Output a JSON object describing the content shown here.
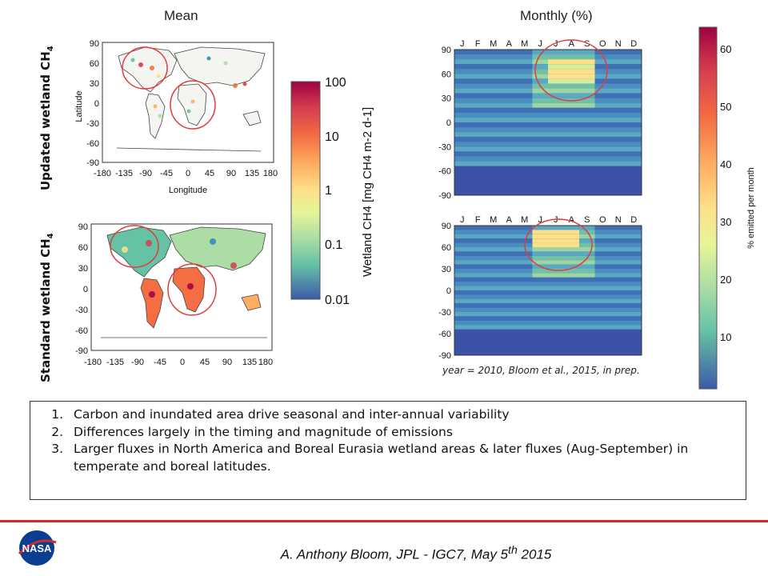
{
  "headers": {
    "mean": "Mean",
    "monthly": "Monthly (%)"
  },
  "row_labels": {
    "updated": {
      "text": "Updated wetland CH",
      "sub": "4"
    },
    "standard": {
      "text": "Standard wetland CH",
      "sub": "4"
    }
  },
  "map_axes": {
    "ylabel": "Latitude",
    "xlabel": "Longitude",
    "lat_ticks": [
      "90",
      "60",
      "30",
      "0",
      "-30",
      "-60",
      "-90"
    ],
    "lon_ticks": [
      "-180",
      "-135",
      "-90",
      "-45",
      "0",
      "45",
      "90",
      "135",
      "180"
    ]
  },
  "mean_colorbar": {
    "label": "Wetland CH4 [mg CH4 m-2 d-1]",
    "ticks": [
      "100",
      "10",
      "1",
      "0.1",
      "0.01"
    ]
  },
  "monthly_axes": {
    "months": [
      "J",
      "F",
      "M",
      "A",
      "M",
      "J",
      "J",
      "A",
      "S",
      "O",
      "N",
      "D"
    ],
    "lat_ticks": [
      "90",
      "60",
      "30",
      "0",
      "-30",
      "-60",
      "-90"
    ]
  },
  "monthly_colorbar": {
    "label": "% emitted per month",
    "ticks": [
      "60",
      "50",
      "40",
      "30",
      "20",
      "10"
    ]
  },
  "credit": "year = 2010, Bloom et al., 2015, in prep.",
  "notes": [
    "Carbon and inundated area drive seasonal and inter-annual variability",
    "Differences largely in the timing and magnitude of emissions",
    "Larger fluxes in North America and Boreal Eurasia wetland areas & later fluxes (Aug-September) in temperate and boreal latitudes."
  ],
  "footer": {
    "text": "A. Anthony Bloom, JPL - IGC7, May 5",
    "sup": "th",
    "year": " 2015",
    "logo": "NASA"
  },
  "colors": {
    "accent_red": "#d42a2a",
    "circle_red": "#e03c3c",
    "nasa_blue": "#0b3d91"
  }
}
